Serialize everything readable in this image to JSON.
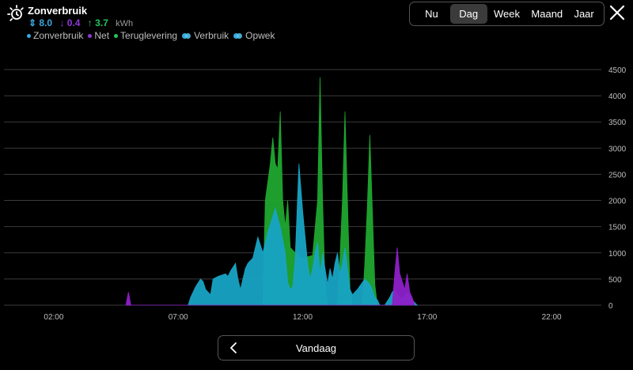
{
  "header": {
    "title": "Zonverbruik",
    "icon": "sun-clock-icon",
    "totals": {
      "sun": "8.0",
      "net": "0.4",
      "feed": "3.7",
      "unit": "kWh"
    },
    "legend": [
      {
        "label": "Zonverbruik",
        "color": "#3aa8e0"
      },
      {
        "label": "Net",
        "color": "#8d3ad8"
      },
      {
        "label": "Teruglevering",
        "color": "#22c55e"
      },
      {
        "label": "Verbruik",
        "color": "#3aa8e0"
      },
      {
        "label": "Opwek",
        "color": "#58c8f0"
      }
    ]
  },
  "tabs": [
    {
      "label": "Nu",
      "active": false
    },
    {
      "label": "Dag",
      "active": true
    },
    {
      "label": "Week",
      "active": false
    },
    {
      "label": "Maand",
      "active": false
    },
    {
      "label": "Jaar",
      "active": false
    }
  ],
  "footer": {
    "period_label": "Vandaag"
  },
  "colors": {
    "sun": "#18a3c4",
    "net": "#8d1fc8",
    "feed": "#1fa72f"
  },
  "chart_data": {
    "type": "area",
    "ylim": [
      0,
      4500
    ],
    "yticks": [
      "0",
      "500",
      "1000",
      "1500",
      "2000",
      "2500",
      "3000",
      "3500",
      "4000",
      "4500"
    ],
    "xlim": [
      0,
      24
    ],
    "xticks": [
      {
        "v": 2,
        "label": "02:00"
      },
      {
        "v": 7,
        "label": "07:00"
      },
      {
        "v": 12,
        "label": "12:00"
      },
      {
        "v": 17,
        "label": "17:00"
      },
      {
        "v": 22,
        "label": "22:00"
      }
    ],
    "series": [
      {
        "name": "Teruglevering",
        "color": "#1fa72f",
        "points": [
          [
            10.4,
            0
          ],
          [
            10.5,
            2000
          ],
          [
            10.7,
            2700
          ],
          [
            10.8,
            3200
          ],
          [
            10.9,
            2700
          ],
          [
            11.0,
            2600
          ],
          [
            11.1,
            3700
          ],
          [
            11.2,
            2000
          ],
          [
            11.3,
            1500
          ],
          [
            11.4,
            2000
          ],
          [
            11.5,
            1100
          ],
          [
            11.7,
            1000
          ],
          [
            12.0,
            900
          ],
          [
            12.4,
            950
          ],
          [
            12.6,
            2000
          ],
          [
            12.7,
            4350
          ],
          [
            12.8,
            2000
          ],
          [
            12.9,
            400
          ],
          [
            13.0,
            0
          ],
          [
            13.4,
            0
          ],
          [
            13.5,
            900
          ],
          [
            13.6,
            2000
          ],
          [
            13.7,
            3700
          ],
          [
            13.8,
            2000
          ],
          [
            13.9,
            300
          ],
          [
            14.0,
            0
          ],
          [
            14.4,
            0
          ],
          [
            14.5,
            800
          ],
          [
            14.6,
            1900
          ],
          [
            14.7,
            3250
          ],
          [
            14.8,
            1800
          ],
          [
            14.9,
            400
          ],
          [
            15.0,
            0
          ]
        ]
      },
      {
        "name": "Zonverbruik",
        "color": "#18a3c4",
        "points": [
          [
            7.4,
            0
          ],
          [
            7.5,
            150
          ],
          [
            7.7,
            350
          ],
          [
            7.9,
            500
          ],
          [
            8.0,
            450
          ],
          [
            8.1,
            300
          ],
          [
            8.3,
            200
          ],
          [
            8.4,
            500
          ],
          [
            8.6,
            550
          ],
          [
            8.9,
            600
          ],
          [
            9.0,
            550
          ],
          [
            9.1,
            650
          ],
          [
            9.3,
            800
          ],
          [
            9.4,
            500
          ],
          [
            9.5,
            300
          ],
          [
            9.7,
            700
          ],
          [
            9.8,
            800
          ],
          [
            10.0,
            900
          ],
          [
            10.2,
            1300
          ],
          [
            10.4,
            1000
          ],
          [
            10.6,
            1400
          ],
          [
            10.9,
            1850
          ],
          [
            11.1,
            1500
          ],
          [
            11.3,
            1000
          ],
          [
            11.4,
            450
          ],
          [
            11.5,
            300
          ],
          [
            11.6,
            350
          ],
          [
            11.7,
            900
          ],
          [
            11.85,
            2700
          ],
          [
            12.0,
            1800
          ],
          [
            12.1,
            1300
          ],
          [
            12.2,
            800
          ],
          [
            12.3,
            500
          ],
          [
            12.4,
            700
          ],
          [
            12.5,
            1000
          ],
          [
            12.6,
            1200
          ],
          [
            12.7,
            600
          ],
          [
            12.8,
            1000
          ],
          [
            12.9,
            700
          ],
          [
            13.0,
            400
          ],
          [
            13.1,
            700
          ],
          [
            13.2,
            500
          ],
          [
            13.3,
            800
          ],
          [
            13.4,
            1000
          ],
          [
            13.5,
            600
          ],
          [
            13.6,
            800
          ],
          [
            13.7,
            1100
          ],
          [
            13.8,
            700
          ],
          [
            13.9,
            300
          ],
          [
            14.0,
            200
          ],
          [
            14.2,
            300
          ],
          [
            14.5,
            500
          ],
          [
            14.7,
            400
          ],
          [
            14.8,
            300
          ],
          [
            14.9,
            150
          ],
          [
            15.0,
            100
          ],
          [
            15.1,
            0
          ],
          [
            15.3,
            0
          ],
          [
            15.5,
            150
          ],
          [
            15.6,
            250
          ],
          [
            15.7,
            300
          ],
          [
            15.8,
            200
          ],
          [
            16.0,
            120
          ],
          [
            16.2,
            250
          ],
          [
            16.4,
            100
          ],
          [
            16.6,
            0
          ]
        ]
      },
      {
        "name": "Net",
        "color": "#8d1fc8",
        "points": [
          [
            4.9,
            0
          ],
          [
            5.0,
            250
          ],
          [
            5.1,
            0
          ],
          [
            15.6,
            0
          ],
          [
            15.7,
            600
          ],
          [
            15.8,
            1100
          ],
          [
            15.9,
            600
          ],
          [
            16.1,
            300
          ],
          [
            16.2,
            600
          ],
          [
            16.3,
            250
          ],
          [
            16.4,
            150
          ],
          [
            16.5,
            0
          ]
        ]
      }
    ]
  }
}
